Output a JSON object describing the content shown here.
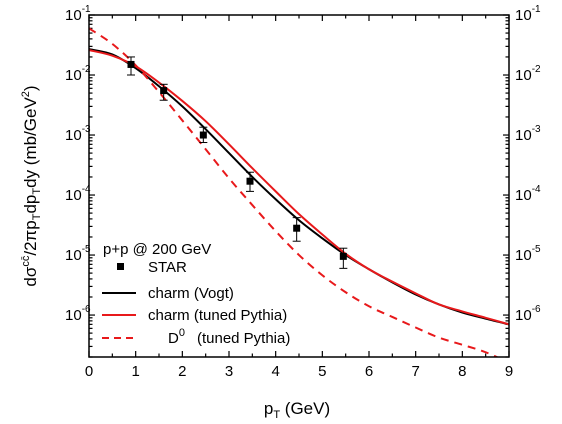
{
  "chart_data": {
    "type": "line",
    "title": "",
    "xlabel": "p",
    "xlabel_sub": "T",
    "xlabel_unit": " (GeV)",
    "ylabel": {
      "pre": "dσ",
      "sup1": "cc̄",
      "mid1": "/2πp",
      "sub1": "T",
      "mid2": "dp",
      "sub2": "T",
      "mid3": "dy (mb/GeV",
      "sup2": "2",
      "post": ")"
    },
    "xlim": [
      0,
      9
    ],
    "ylim": [
      2e-07,
      0.1
    ],
    "y_scale": "log",
    "x_ticks": [
      "0",
      "1",
      "2",
      "3",
      "4",
      "5",
      "6",
      "7",
      "8",
      "9"
    ],
    "y_ticks": [
      {
        "base": "10",
        "exp": "-1"
      },
      {
        "base": "10",
        "exp": "-2"
      },
      {
        "base": "10",
        "exp": "-3"
      },
      {
        "base": "10",
        "exp": "-4"
      },
      {
        "base": "10",
        "exp": "-5"
      },
      {
        "base": "10",
        "exp": "-6"
      }
    ],
    "legend": {
      "title": "p+p @ 200 GeV",
      "position": "bottom-left",
      "entries": {
        "star": "STAR",
        "vogt": "charm (Vogt)",
        "pythia": "charm (tuned Pythia)",
        "d0_base": "D",
        "d0_sup": "0",
        "d0_rest": "(tuned Pythia)"
      }
    },
    "colors": {
      "black": "#000000",
      "red": "#e8191b"
    },
    "series": [
      {
        "name": "STAR",
        "style": "black square markers with error bars",
        "points": [
          {
            "x": 0.9,
            "y": 0.015,
            "lo": 0.01,
            "hi": 0.02
          },
          {
            "x": 1.6,
            "y": 0.0055,
            "lo": 0.0038,
            "hi": 0.007
          },
          {
            "x": 2.45,
            "y": 0.001,
            "lo": 0.00075,
            "hi": 0.00135
          },
          {
            "x": 3.45,
            "y": 0.00017,
            "lo": 0.000115,
            "hi": 0.00024
          },
          {
            "x": 4.45,
            "y": 2.8e-05,
            "lo": 1.7e-05,
            "hi": 4.2e-05
          },
          {
            "x": 5.45,
            "y": 9.5e-06,
            "lo": 6e-06,
            "hi": 1.3e-05
          }
        ]
      },
      {
        "name": "charm (Vogt)",
        "style": "solid black",
        "x": [
          0,
          0.5,
          1,
          1.5,
          2,
          2.5,
          3,
          3.5,
          4,
          4.5,
          5,
          5.5,
          6,
          6.5,
          7,
          7.5,
          8,
          8.5,
          9
        ],
        "y": [
          0.027,
          0.022,
          0.013,
          0.0065,
          0.003,
          0.00125,
          0.0005,
          0.0002,
          8.5e-05,
          3.8e-05,
          1.9e-05,
          1e-05,
          5.8e-06,
          3.5e-06,
          2.2e-06,
          1.5e-06,
          1.1e-06,
          8.7e-07,
          7e-07
        ]
      },
      {
        "name": "charm (tuned Pythia)",
        "style": "solid red",
        "x": [
          0,
          0.5,
          1,
          1.5,
          2,
          2.5,
          3,
          3.5,
          4,
          4.5,
          5,
          5.5,
          6,
          6.5,
          7,
          7.5,
          8,
          8.5,
          9
        ],
        "y": [
          0.026,
          0.021,
          0.014,
          0.0075,
          0.0037,
          0.0017,
          0.0007,
          0.00028,
          0.000115,
          4.8e-05,
          2.2e-05,
          1.05e-05,
          5.8e-06,
          3.6e-06,
          2.3e-06,
          1.5e-06,
          1.15e-06,
          9e-07,
          7e-07
        ]
      },
      {
        "name": "D0 (tuned Pythia)",
        "style": "dashed red",
        "x": [
          0,
          0.5,
          1,
          1.5,
          2,
          2.5,
          3,
          3.5,
          4,
          4.5,
          5,
          5.5,
          6,
          6.5,
          7,
          7.5,
          8,
          8.5,
          9
        ],
        "y": [
          0.06,
          0.033,
          0.0145,
          0.0052,
          0.00175,
          0.00058,
          0.00019,
          6.8e-05,
          2.5e-05,
          1e-05,
          4.6e-06,
          2.4e-06,
          1.4e-06,
          9.3e-07,
          6.2e-07,
          4.2e-07,
          3.2e-07,
          2.4e-07,
          1.6e-07
        ]
      }
    ]
  }
}
